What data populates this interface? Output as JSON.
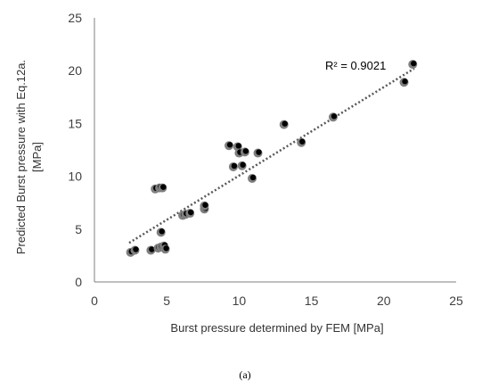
{
  "caption": "(a)",
  "chart_data": {
    "type": "scatter",
    "xlabel": "Burst pressure determined by FEM [MPa]",
    "ylabel_lines": [
      "Predicted Burst pressure with Eq.12a.",
      "[MPa]"
    ],
    "xlim": [
      0,
      25
    ],
    "ylim": [
      0,
      25
    ],
    "xticks": [
      0,
      5,
      10,
      15,
      20,
      25
    ],
    "yticks": [
      0,
      5,
      10,
      15,
      20,
      25
    ],
    "grid": false,
    "legend": "none",
    "annotation": "R² = 0.9021",
    "trendline": {
      "x": [
        2.4,
        22.1
      ],
      "y": [
        3.7,
        20.2
      ],
      "style": "dotted",
      "color": "#595959"
    },
    "marker_color": "#7f7f7f",
    "marker_inner_color": "#000000",
    "points": [
      {
        "x": 2.5,
        "y": 2.8
      },
      {
        "x": 2.8,
        "y": 3.0
      },
      {
        "x": 3.9,
        "y": 3.0
      },
      {
        "x": 4.4,
        "y": 3.2
      },
      {
        "x": 4.6,
        "y": 3.3
      },
      {
        "x": 4.8,
        "y": 3.4
      },
      {
        "x": 4.9,
        "y": 3.1
      },
      {
        "x": 4.6,
        "y": 4.7
      },
      {
        "x": 4.2,
        "y": 8.8
      },
      {
        "x": 4.5,
        "y": 8.9
      },
      {
        "x": 4.7,
        "y": 8.9
      },
      {
        "x": 6.1,
        "y": 6.3
      },
      {
        "x": 6.3,
        "y": 6.4
      },
      {
        "x": 6.6,
        "y": 6.5
      },
      {
        "x": 7.6,
        "y": 6.9
      },
      {
        "x": 7.6,
        "y": 7.2
      },
      {
        "x": 9.3,
        "y": 12.9
      },
      {
        "x": 9.6,
        "y": 10.9
      },
      {
        "x": 9.9,
        "y": 12.8
      },
      {
        "x": 10.0,
        "y": 12.2
      },
      {
        "x": 10.2,
        "y": 11.0
      },
      {
        "x": 10.4,
        "y": 12.3
      },
      {
        "x": 10.9,
        "y": 9.8
      },
      {
        "x": 11.3,
        "y": 12.2
      },
      {
        "x": 13.1,
        "y": 14.9
      },
      {
        "x": 14.3,
        "y": 13.2
      },
      {
        "x": 16.5,
        "y": 15.6
      },
      {
        "x": 21.4,
        "y": 18.9
      },
      {
        "x": 22.0,
        "y": 20.6
      }
    ]
  }
}
